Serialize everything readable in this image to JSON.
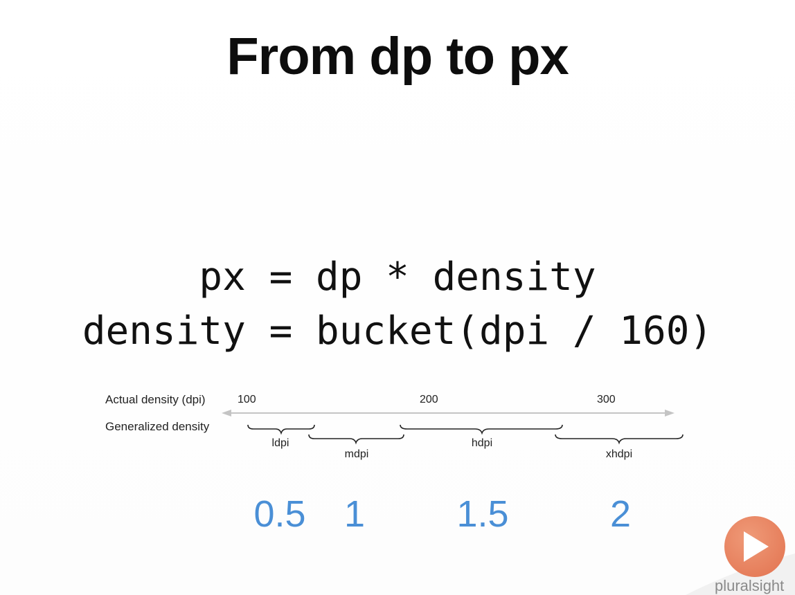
{
  "title": "From dp to px",
  "formulas": {
    "line1": "px = dp * density",
    "line2": "density = bucket(dpi / 160)"
  },
  "diagram": {
    "row_labels": {
      "actual": "Actual density (dpi)",
      "generalized": "Generalized density"
    },
    "dpi_ticks": [
      "100",
      "200",
      "300"
    ],
    "buckets": [
      "ldpi",
      "mdpi",
      "hdpi",
      "xhdpi"
    ],
    "factors": [
      "0.5",
      "1",
      "1.5",
      "2"
    ],
    "colors": {
      "factor": "#4a8fd6",
      "axis": "#bdbdbd"
    }
  },
  "branding": {
    "name": "pluralsight",
    "icon": "play-icon",
    "accent": "#e2724f"
  }
}
